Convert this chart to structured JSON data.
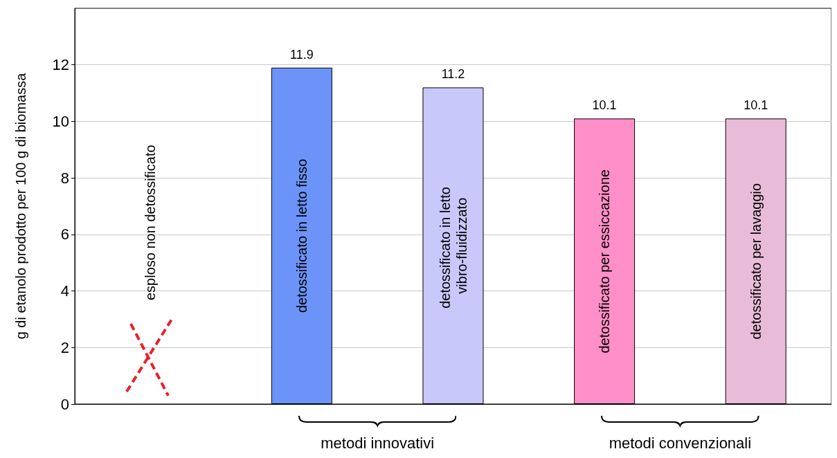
{
  "chart_data": {
    "type": "bar",
    "ylabel": "g di etanolo prodotto per 100 g di biomassa",
    "categories": [
      "esploso non detossificato",
      "detossificato in letto fisso",
      "detossificato in letto vibro-fluidizzato",
      "detossificato per essiccazione",
      "detossificato per lavaggio"
    ],
    "values": [
      null,
      11.9,
      11.2,
      10.1,
      10.1
    ],
    "colors": [
      "#ffffff",
      "#6b93f8",
      "#c8c8fb",
      "#ff8fc8",
      "#e8bcd8"
    ],
    "ylim": [
      0,
      14
    ],
    "yticks": [
      0,
      2,
      4,
      6,
      8,
      10,
      12
    ],
    "grid": "y",
    "data_labels": true,
    "annotations": [
      "metodi innovativi",
      "metodi convenzionali"
    ]
  }
}
